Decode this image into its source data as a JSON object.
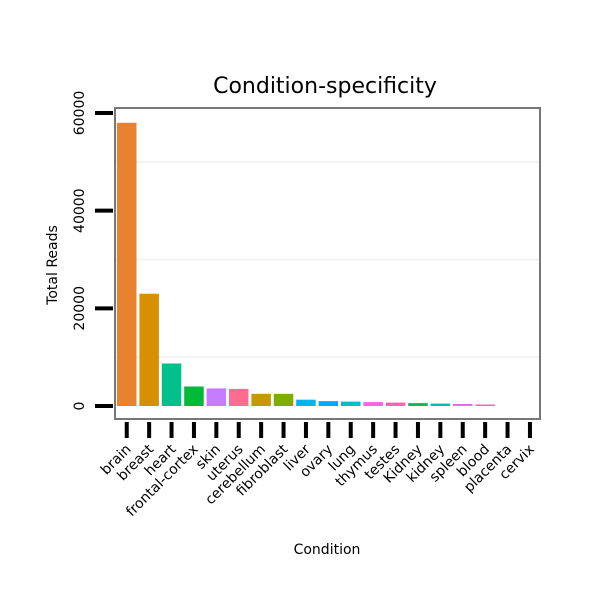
{
  "chart_data": {
    "type": "bar",
    "title": "Condition-specificity",
    "xlabel": "Condition",
    "ylabel": "Total Reads",
    "ylim": [
      0,
      60000
    ],
    "yticks": [
      0,
      20000,
      40000,
      60000
    ],
    "y_tick_labels": [
      "0",
      "20000",
      "40000",
      "60000"
    ],
    "categories": [
      "brain",
      "breast",
      "heart",
      "frontal-cortex",
      "skin",
      "uterus",
      "cerebellum",
      "fibroblast",
      "liver",
      "ovary",
      "lung",
      "thymus",
      "testes",
      "Kidney",
      "kidney",
      "spleen",
      "blood",
      "placenta",
      "cervix"
    ],
    "values": [
      58000,
      23000,
      8700,
      4000,
      3600,
      3500,
      2500,
      2500,
      1300,
      1000,
      900,
      800,
      700,
      600,
      500,
      400,
      300,
      0,
      0
    ],
    "colors": [
      "#E8822E",
      "#D89000",
      "#00C08B",
      "#00BA38",
      "#C77CFF",
      "#FF6C91",
      "#C49A00",
      "#7CAE00",
      "#00B4F0",
      "#00A9FF",
      "#00BFC4",
      "#F564E3",
      "#FF64B0",
      "#00BC56",
      "#00C0AF",
      "#E76BF3",
      "#FF61C3",
      "#F8766D",
      "#A3A500"
    ],
    "grid": true,
    "legend": "none"
  }
}
